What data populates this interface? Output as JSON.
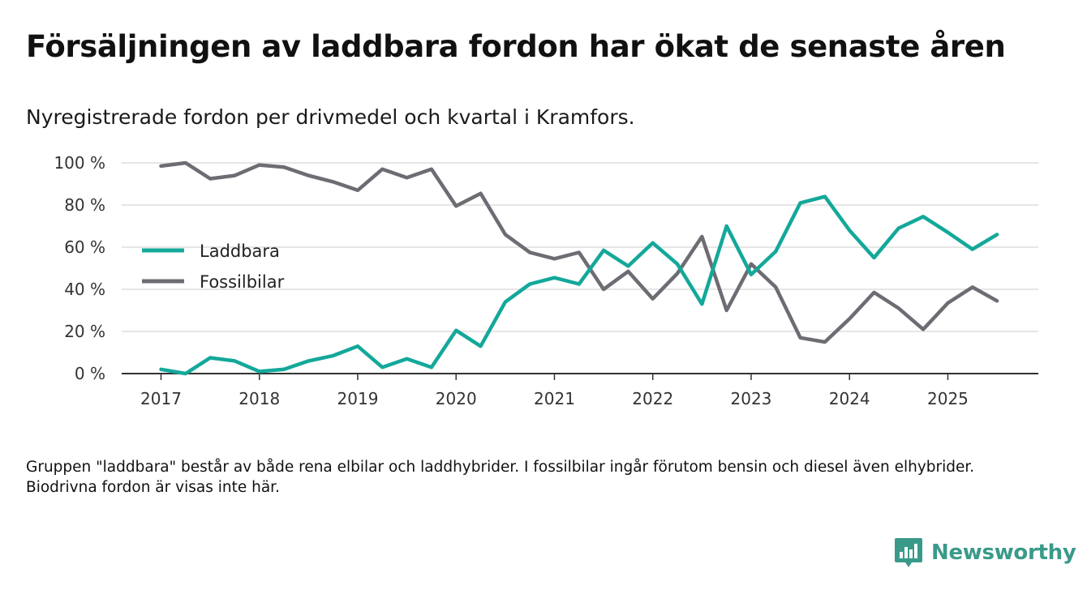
{
  "title": "Försäljningen av laddbara fordon har ökat de senaste åren",
  "subtitle": "Nyregistrerade fordon per drivmedel och kvartal i Kramfors.",
  "note": "Gruppen \"laddbara\" består av både rena elbilar och laddhybrider. I fossilbilar ingår förutom bensin och diesel även elhybrider. Biodrivna fordon är visas inte här.",
  "brand": {
    "name": "Newsworthy",
    "icon": "newsworthy-logo-icon",
    "color": "#3a9a8a"
  },
  "chart_data": {
    "type": "line",
    "x": [
      2017.0,
      2017.25,
      2017.5,
      2017.75,
      2018.0,
      2018.25,
      2018.5,
      2018.75,
      2019.0,
      2019.25,
      2019.5,
      2019.75,
      2020.0,
      2020.25,
      2020.5,
      2020.75,
      2021.0,
      2021.25,
      2021.5,
      2021.75,
      2022.0,
      2022.25,
      2022.5,
      2022.75,
      2023.0,
      2023.25,
      2023.5,
      2023.75,
      2024.0,
      2024.25,
      2024.5,
      2024.75,
      2025.0,
      2025.25,
      2025.5
    ],
    "xlim": [
      2016.6,
      2025.92
    ],
    "ylim": [
      0,
      100
    ],
    "yticks": [
      0,
      20,
      40,
      60,
      80,
      100
    ],
    "ytick_labels": [
      "0 %",
      "20 %",
      "40 %",
      "60 %",
      "80 %",
      "100 %"
    ],
    "xticks": [
      2017,
      2018,
      2019,
      2020,
      2021,
      2022,
      2023,
      2024,
      2025
    ],
    "xtick_labels": [
      "2017",
      "2018",
      "2019",
      "2020",
      "2021",
      "2022",
      "2023",
      "2024",
      "2025"
    ],
    "grid": true,
    "legend_position": "left",
    "series": [
      {
        "name": "Laddbara",
        "color": "#13a89a",
        "values": [
          2,
          0,
          7.5,
          6,
          1,
          2,
          6,
          8.5,
          13,
          3,
          7,
          3,
          20.5,
          13,
          34,
          42.5,
          45.5,
          42.5,
          58.5,
          51,
          62,
          52,
          33,
          70,
          47,
          58,
          81,
          84,
          68,
          55,
          69,
          74.5,
          67,
          59,
          66
        ]
      },
      {
        "name": "Fossilbilar",
        "color": "#6e6c73",
        "values": [
          98.5,
          100,
          92.5,
          94,
          99,
          98,
          94,
          91,
          87,
          97,
          93,
          97,
          79.5,
          85.5,
          66,
          57.5,
          54.5,
          57.5,
          40,
          48.5,
          35.5,
          47.5,
          65,
          30,
          52,
          41,
          17,
          15,
          26,
          38.5,
          31,
          21,
          33.5,
          41,
          34.5
        ]
      }
    ]
  }
}
